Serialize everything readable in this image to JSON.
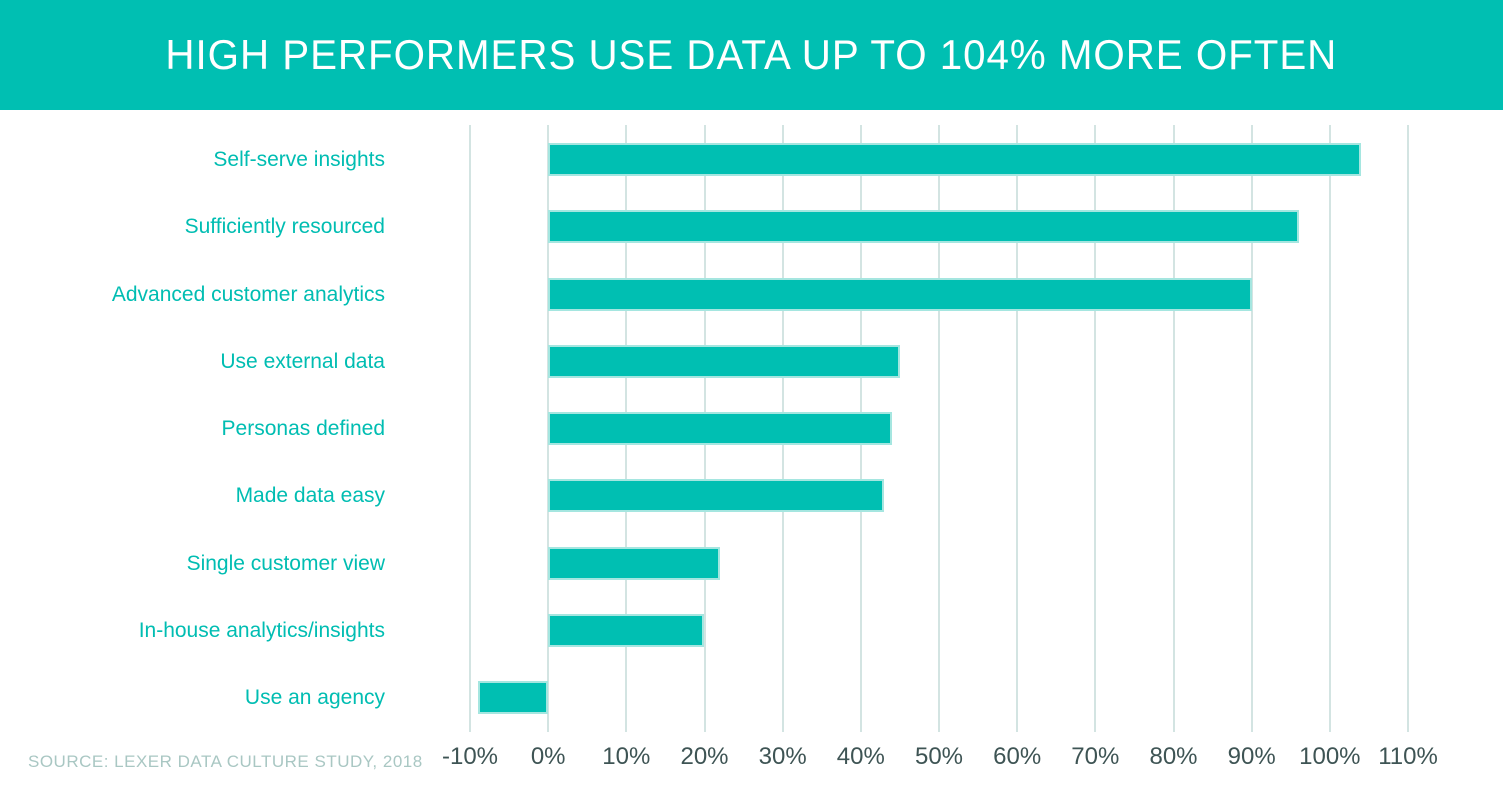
{
  "header": {
    "title": "HIGH PERFORMERS USE DATA UP TO 104% MORE OFTEN"
  },
  "source": {
    "text": "SOURCE: LEXER DATA CULTURE STUDY, 2018"
  },
  "colors": {
    "teal": "#00BFB2",
    "bar_fill": "#00BFB2",
    "bar_border": "#A5E6E0",
    "gridline": "#D3E4E2",
    "label_teal": "#00BDB2",
    "tick_text": "#3E5454",
    "source_text": "#A9C7C3",
    "title_text": "#FFFFFF",
    "background": "#FFFFFF"
  },
  "chart_data": {
    "type": "bar",
    "orientation": "horizontal",
    "title": "HIGH PERFORMERS USE DATA UP TO 104% MORE OFTEN",
    "categories": [
      "Self-serve insights",
      "Sufficiently resourced",
      "Advanced customer analytics",
      "Use external data",
      "Personas defined",
      "Made data easy",
      "Single customer view",
      "In-house analytics/insights",
      "Use an agency"
    ],
    "values": [
      104,
      96,
      90,
      45,
      44,
      43,
      22,
      20,
      -9
    ],
    "unit": "%",
    "xlabel": "",
    "ylabel": "",
    "xlim": [
      -10,
      110
    ],
    "x_ticks": [
      -10,
      0,
      10,
      20,
      30,
      40,
      50,
      60,
      70,
      80,
      90,
      100,
      110
    ],
    "x_tick_labels": [
      "-10%",
      "0%",
      "10%",
      "20%",
      "30%",
      "40%",
      "50%",
      "60%",
      "70%",
      "80%",
      "90%",
      "100%",
      "110%"
    ],
    "grid": true,
    "legend": false,
    "source": "SOURCE: LEXER DATA CULTURE STUDY, 2018"
  }
}
